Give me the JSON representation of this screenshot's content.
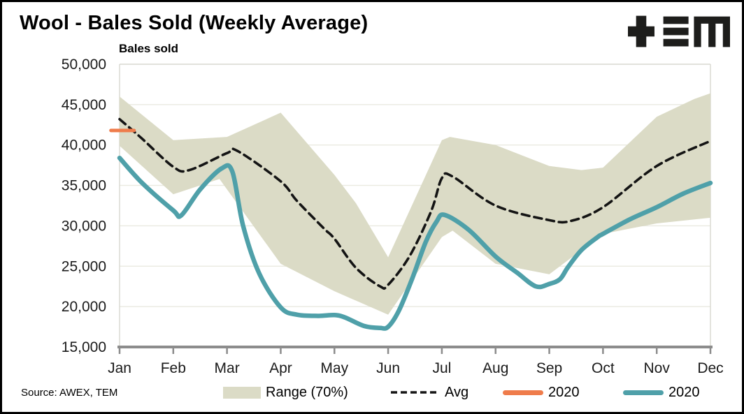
{
  "title": "Wool - Bales Sold (Weekly Average)",
  "source": "Source: AWEX, TEM",
  "logo_name": "TEM logo",
  "chart_data": {
    "type": "area",
    "title": "Wool - Bales Sold (Weekly Average)",
    "y_axis": {
      "title": "Bales sold",
      "min": 15000,
      "max": 50000,
      "step": 5000,
      "tick_labels": [
        "50,000",
        "45,000",
        "40,000",
        "35,000",
        "30,000",
        "25,000",
        "20,000",
        "15,000"
      ],
      "tick_values": [
        50000,
        45000,
        40000,
        35000,
        30000,
        25000,
        20000,
        15000
      ]
    },
    "x_axis": {
      "tick_labels": [
        "Jan",
        "Feb",
        "Mar",
        "Apr",
        "May",
        "Jun",
        "Jul",
        "Aug",
        "Sep",
        "Oct",
        "Nov",
        "Dec"
      ],
      "grid": false
    },
    "grid": "horizontal",
    "series": [
      {
        "name": "Range (70%)",
        "type": "band",
        "color": "#dbdbc6",
        "top": [
          [
            0,
            46000
          ],
          [
            1,
            40600
          ],
          [
            2,
            41000
          ],
          [
            3,
            44000
          ],
          [
            4,
            36300
          ],
          [
            4.4,
            32800
          ],
          [
            5,
            26100
          ],
          [
            6,
            40600
          ],
          [
            6.15,
            41000
          ],
          [
            7,
            40000
          ],
          [
            8,
            37400
          ],
          [
            8.6,
            36900
          ],
          [
            9,
            37200
          ],
          [
            10,
            43500
          ],
          [
            10.7,
            45700
          ],
          [
            11,
            46400
          ]
        ],
        "bottom": [
          [
            0,
            39900
          ],
          [
            1,
            33900
          ],
          [
            1.86,
            35800
          ],
          [
            3,
            25300
          ],
          [
            4,
            21900
          ],
          [
            5,
            19000
          ],
          [
            6,
            28600
          ],
          [
            6.2,
            29400
          ],
          [
            7,
            25300
          ],
          [
            8,
            24000
          ],
          [
            9,
            29000
          ],
          [
            10,
            30300
          ],
          [
            11,
            31000
          ]
        ]
      },
      {
        "name": "Avg",
        "type": "line",
        "dashed": true,
        "smooth": true,
        "color": "#141414",
        "width": 3.6,
        "points": [
          [
            0,
            43200
          ],
          [
            0.4,
            40900
          ],
          [
            1,
            37300
          ],
          [
            1.3,
            36900
          ],
          [
            2,
            39000
          ],
          [
            2.2,
            39250
          ],
          [
            3,
            35500
          ],
          [
            3.3,
            33100
          ],
          [
            3.8,
            29700
          ],
          [
            4,
            28400
          ],
          [
            4.4,
            24800
          ],
          [
            4.85,
            22500
          ],
          [
            5,
            22700
          ],
          [
            5.4,
            26250
          ],
          [
            5.8,
            31800
          ],
          [
            6,
            35900
          ],
          [
            6.2,
            36100
          ],
          [
            7,
            32500
          ],
          [
            8,
            30700
          ],
          [
            8.4,
            30600
          ],
          [
            9,
            32300
          ],
          [
            10,
            37400
          ],
          [
            11,
            40500
          ]
        ]
      },
      {
        "name": "2020",
        "type": "line",
        "dashed": false,
        "smooth": false,
        "color": "#ef7c4b",
        "width": 5,
        "points": [
          [
            -0.16,
            41800
          ],
          [
            0.27,
            41800
          ]
        ]
      },
      {
        "name": "2020",
        "type": "line",
        "dashed": false,
        "smooth": true,
        "color": "#4fa0a9",
        "width": 6.5,
        "points": [
          [
            0,
            38400
          ],
          [
            0.42,
            35300
          ],
          [
            1,
            31900
          ],
          [
            1.15,
            31300
          ],
          [
            1.5,
            34500
          ],
          [
            1.9,
            37100
          ],
          [
            2.1,
            36700
          ],
          [
            2.3,
            30000
          ],
          [
            2.6,
            24100
          ],
          [
            3,
            19900
          ],
          [
            3.3,
            19000
          ],
          [
            3.7,
            18850
          ],
          [
            4,
            18950
          ],
          [
            4.2,
            18650
          ],
          [
            4.55,
            17600
          ],
          [
            4.85,
            17350
          ],
          [
            5,
            17500
          ],
          [
            5.2,
            19500
          ],
          [
            5.45,
            23500
          ],
          [
            5.7,
            28000
          ],
          [
            5.9,
            30500
          ],
          [
            6.05,
            31350
          ],
          [
            6.5,
            29500
          ],
          [
            7,
            26200
          ],
          [
            7.4,
            24200
          ],
          [
            7.75,
            22500
          ],
          [
            8,
            22800
          ],
          [
            8.2,
            23400
          ],
          [
            8.35,
            24900
          ],
          [
            8.6,
            27000
          ],
          [
            8.9,
            28600
          ],
          [
            9,
            29000
          ],
          [
            9.5,
            30800
          ],
          [
            10,
            32300
          ],
          [
            10.5,
            34000
          ],
          [
            11,
            35300
          ]
        ]
      }
    ],
    "legend": [
      {
        "swatch": "box",
        "color": "#dbdbc6",
        "label": "Range (70%)"
      },
      {
        "swatch": "dash",
        "color": "#141414",
        "label": "Avg"
      },
      {
        "swatch": "line",
        "color": "#ef7c4b",
        "label": "2020"
      },
      {
        "swatch": "line",
        "color": "#4fa0a9",
        "label": "2020"
      }
    ],
    "colors": {
      "band": "#dbdbc6",
      "avg_line": "#141414",
      "line_2020": "#4fa0a9",
      "marker_2020": "#ef7c4b",
      "gridline": "#eaeae0",
      "plot_border": "#d8d8d0",
      "axis": "#8c8c8c",
      "text": "#1a1a1a"
    }
  }
}
